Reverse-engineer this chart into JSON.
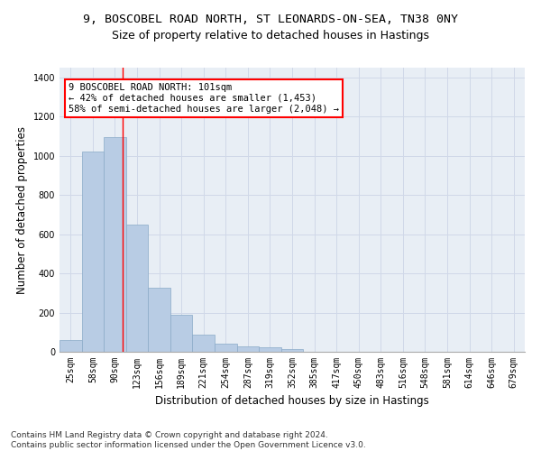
{
  "title_line1": "9, BOSCOBEL ROAD NORTH, ST LEONARDS-ON-SEA, TN38 0NY",
  "title_line2": "Size of property relative to detached houses in Hastings",
  "xlabel": "Distribution of detached houses by size in Hastings",
  "ylabel": "Number of detached properties",
  "categories": [
    "25sqm",
    "58sqm",
    "90sqm",
    "123sqm",
    "156sqm",
    "189sqm",
    "221sqm",
    "254sqm",
    "287sqm",
    "319sqm",
    "352sqm",
    "385sqm",
    "417sqm",
    "450sqm",
    "483sqm",
    "516sqm",
    "548sqm",
    "581sqm",
    "614sqm",
    "646sqm",
    "679sqm"
  ],
  "values": [
    60,
    1020,
    1095,
    650,
    325,
    190,
    88,
    42,
    28,
    25,
    15,
    0,
    0,
    0,
    0,
    0,
    0,
    0,
    0,
    0,
    0
  ],
  "bar_color": "#b8cce4",
  "bar_edge_color": "#8aaac8",
  "grid_color": "#d0d8e8",
  "background_color": "#e8eef5",
  "annotation_box_text": "9 BOSCOBEL ROAD NORTH: 101sqm\n← 42% of detached houses are smaller (1,453)\n58% of semi-detached houses are larger (2,048) →",
  "ylim": [
    0,
    1450
  ],
  "yticks": [
    0,
    200,
    400,
    600,
    800,
    1000,
    1200,
    1400
  ],
  "red_line_x": 2.33,
  "footnote": "Contains HM Land Registry data © Crown copyright and database right 2024.\nContains public sector information licensed under the Open Government Licence v3.0.",
  "title_fontsize": 9.5,
  "subtitle_fontsize": 9,
  "axis_label_fontsize": 8.5,
  "tick_fontsize": 7,
  "annotation_fontsize": 7.5,
  "footnote_fontsize": 6.5
}
